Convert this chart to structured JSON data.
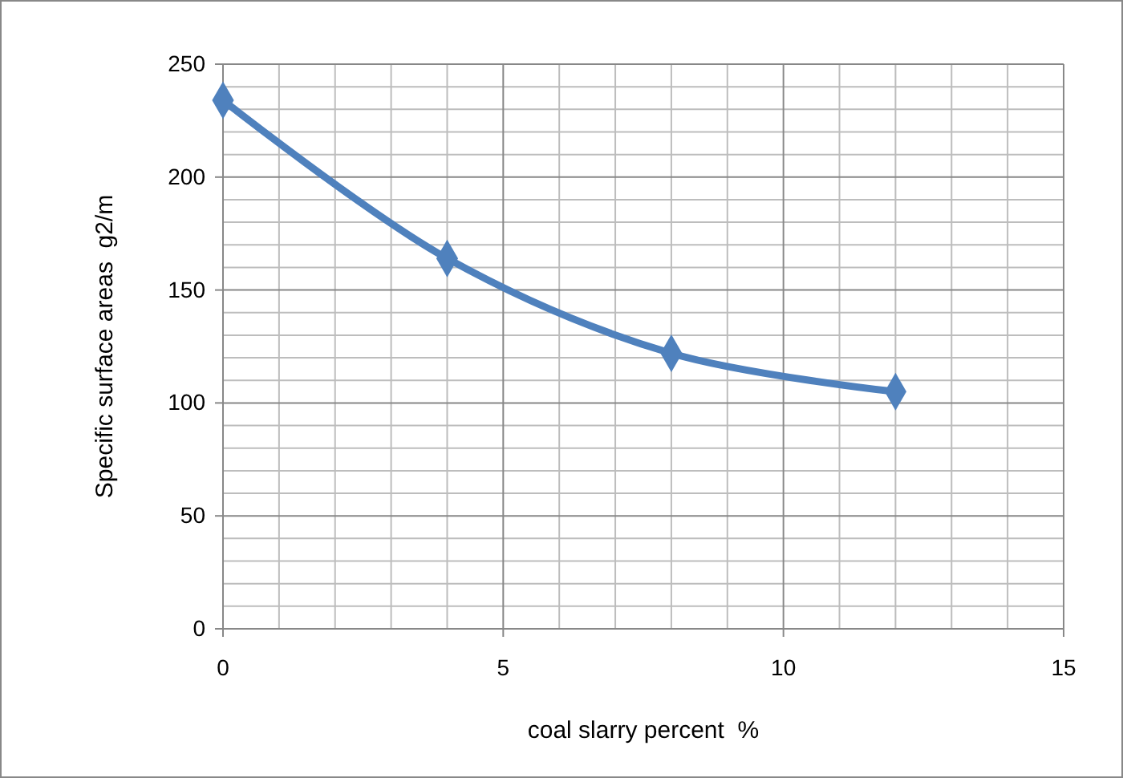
{
  "chart_data": {
    "type": "line",
    "xlabel": "coal slarry percent  %",
    "ylabel": "Specific surface areas  g2/m",
    "x": [
      0,
      4,
      8,
      12
    ],
    "series": [
      {
        "color": "#4f81bd",
        "values": [
          234,
          164,
          122,
          105
        ]
      }
    ],
    "xlim": [
      0,
      15
    ],
    "xticks": [
      0,
      5,
      10,
      15
    ],
    "ylim": [
      0,
      250
    ],
    "yticks": [
      0,
      50,
      100,
      150,
      200,
      250
    ],
    "grid": true,
    "marker": "diamond",
    "line_style": "solid"
  }
}
